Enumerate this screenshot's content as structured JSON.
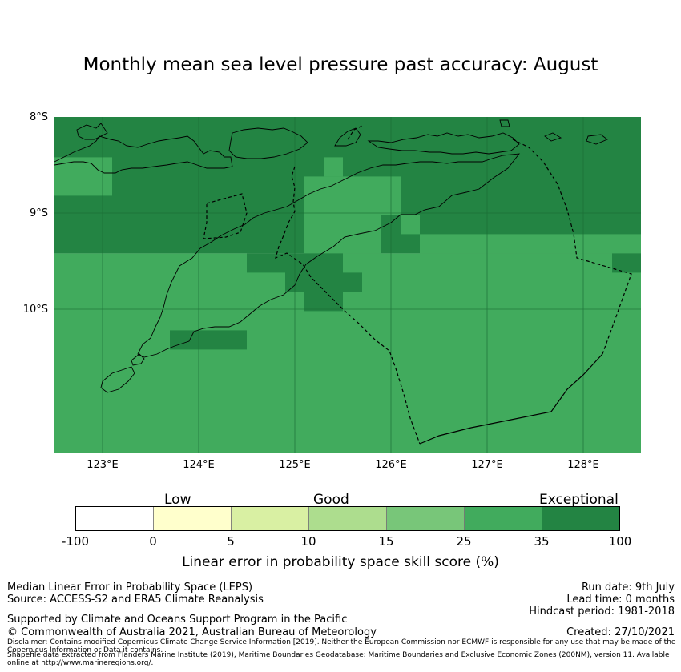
{
  "title": "Monthly mean sea level pressure past accuracy: August",
  "map": {
    "lat_labels": [
      "8°S",
      "9°S",
      "10°S"
    ],
    "lon_labels": [
      "123°E",
      "124°E",
      "125°E",
      "126°E",
      "127°E",
      "128°E"
    ],
    "extent": {
      "lon": [
        122.5,
        128.6
      ],
      "lat": [
        -11.5,
        -8.0
      ]
    },
    "grid_step_deg": 0.2,
    "colors": {
      "good25_35": "#41ab5d",
      "exceptional35_100": "#238443",
      "coast": "#000000"
    }
  },
  "chart_data": {
    "type": "heatmap",
    "title": "Monthly mean sea level pressure past accuracy: August",
    "colorbar": {
      "label": "Linear error in probability space skill score (%)",
      "categories": [
        "Low",
        "Good",
        "Exceptional"
      ],
      "ticks": [
        "-100",
        "0",
        "5",
        "10",
        "15",
        "25",
        "35",
        "100"
      ],
      "bins": [
        {
          "range": [
            -100,
            0
          ],
          "color": "#ffffff"
        },
        {
          "range": [
            0,
            5
          ],
          "color": "#ffffcc"
        },
        {
          "range": [
            5,
            10
          ],
          "color": "#d9f0a3"
        },
        {
          "range": [
            10,
            15
          ],
          "color": "#addd8e"
        },
        {
          "range": [
            15,
            25
          ],
          "color": "#78c679"
        },
        {
          "range": [
            25,
            35
          ],
          "color": "#41ab5d"
        },
        {
          "range": [
            35,
            100
          ],
          "color": "#238443"
        }
      ]
    },
    "regions": [
      {
        "lon": [
          122.5,
          128.6
        ],
        "lat": [
          -11.5,
          -9.42
        ],
        "bin": "25-35"
      },
      {
        "lon": [
          122.5,
          128.6
        ],
        "lat": [
          -9.42,
          -8.0
        ],
        "bin": "35-100"
      },
      {
        "lon": [
          122.5,
          123.1
        ],
        "lat": [
          -8.82,
          -8.42
        ],
        "bin": "25-35"
      },
      {
        "lon": [
          125.1,
          125.9
        ],
        "lat": [
          -9.42,
          -8.62
        ],
        "bin": "25-35"
      },
      {
        "lon": [
          125.3,
          125.5
        ],
        "lat": [
          -8.62,
          -8.42
        ],
        "bin": "25-35"
      },
      {
        "lon": [
          125.9,
          126.1
        ],
        "lat": [
          -9.02,
          -8.62
        ],
        "bin": "25-35"
      },
      {
        "lon": [
          126.1,
          126.3
        ],
        "lat": [
          -9.22,
          -9.02
        ],
        "bin": "25-35"
      },
      {
        "lon": [
          126.3,
          128.6
        ],
        "lat": [
          -9.42,
          -9.22
        ],
        "bin": "25-35"
      },
      {
        "lon": [
          128.3,
          128.6
        ],
        "lat": [
          -9.62,
          -9.42
        ],
        "bin": "35-100"
      },
      {
        "lon": [
          124.5,
          125.0
        ],
        "lat": [
          -9.62,
          -9.42
        ],
        "bin": "35-100"
      },
      {
        "lon": [
          124.9,
          125.5
        ],
        "lat": [
          -9.82,
          -9.42
        ],
        "bin": "35-100"
      },
      {
        "lon": [
          125.5,
          125.7
        ],
        "lat": [
          -9.82,
          -9.62
        ],
        "bin": "35-100"
      },
      {
        "lon": [
          125.1,
          125.5
        ],
        "lat": [
          -10.02,
          -9.82
        ],
        "bin": "35-100"
      },
      {
        "lon": [
          123.7,
          124.5
        ],
        "lat": [
          -10.42,
          -10.22
        ],
        "bin": "35-100"
      }
    ]
  },
  "footer": {
    "left1": "Median Linear Error in Probability Space (LEPS)",
    "left2": "Source: ACCESS-S2 and ERA5 Climate Reanalysis",
    "left3": "Supported by Climate and Oceans Support Program in the Pacific",
    "left4": "© Commonwealth of Australia 2021, Australian Bureau of Meteorology",
    "right1": "Run date: 9th July",
    "right2": "Lead time: 0 months",
    "right3": "Hindcast period: 1981-2018",
    "right4": "Created: 27/10/2021",
    "disclaimer1": "Disclaimer: Contains modified Copernicus Climate Change Service Information [2019]. Neither the European Commission nor ECMWF is responsible for any use that may be made of the Copernicus Information or Data it contains.",
    "disclaimer2": "Shapefile data extracted from Flanders Marine Institute (2019), Maritime Boundaries Geodatabase: Maritime Boundaries and Exclusive Economic Zones (200NM), version 11. Available online at http://www.marineregions.org/."
  }
}
